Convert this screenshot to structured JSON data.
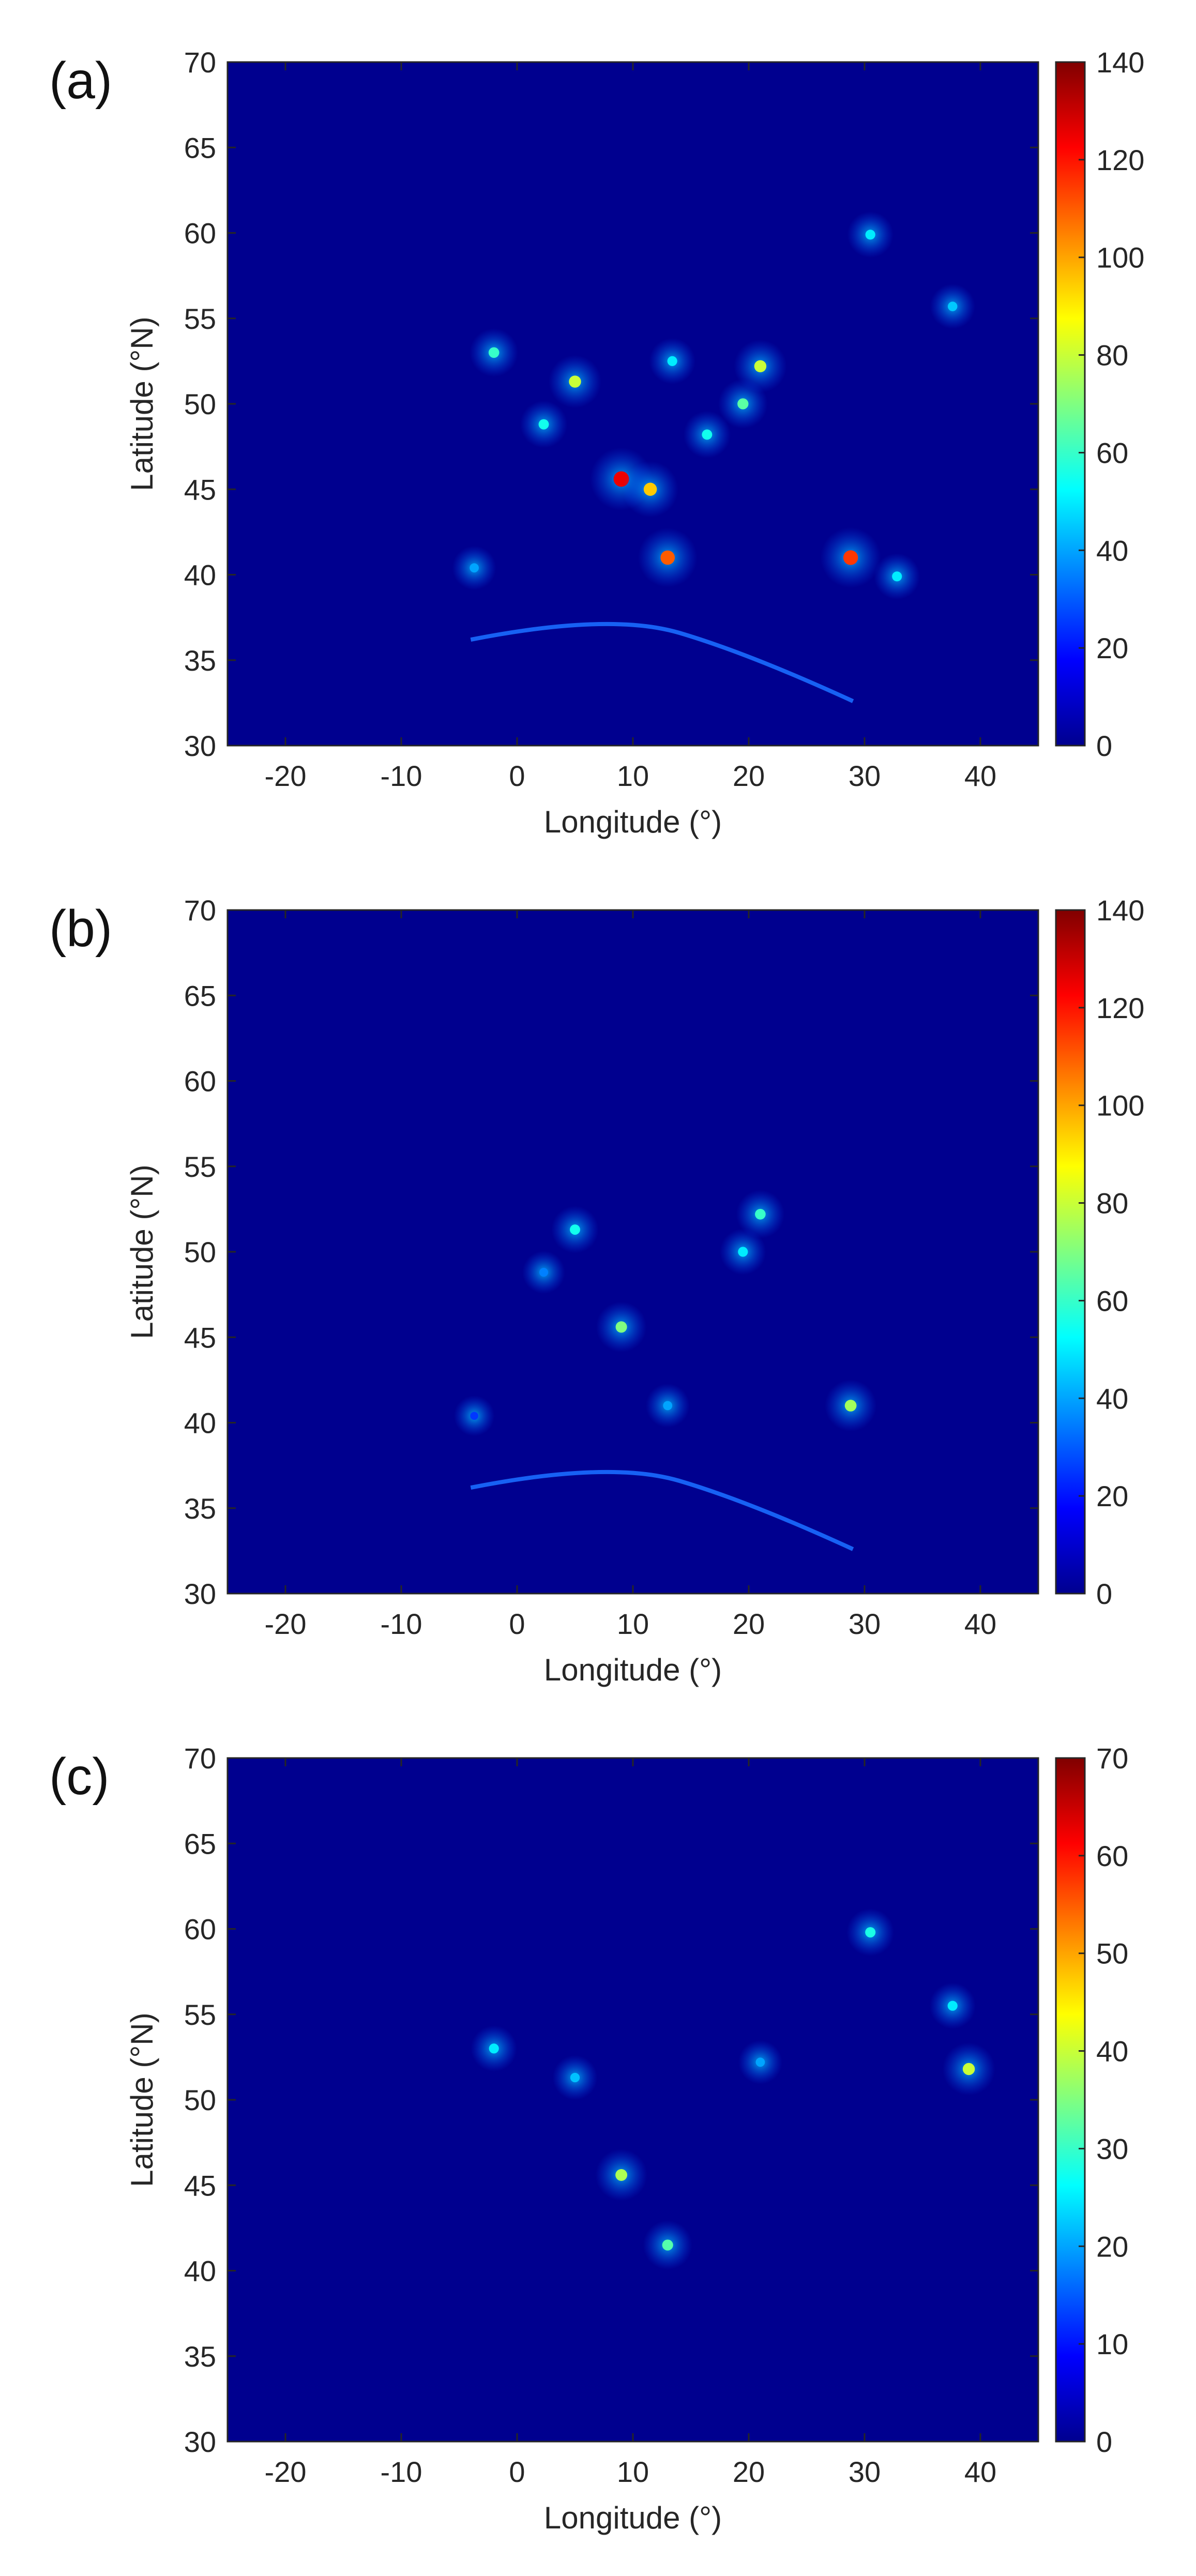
{
  "colors": {
    "background": "#00008f",
    "colormap": [
      "#00008f",
      "#0000ff",
      "#0080ff",
      "#00ffff",
      "#80ff80",
      "#ffff00",
      "#ff8000",
      "#ff0000",
      "#800000"
    ]
  },
  "chart_data": [
    {
      "panel_label": "(a)",
      "type": "heatmap",
      "xlabel": "Longitude (°)",
      "ylabel": "Latitude (°N)",
      "xlim": [
        -25,
        45
      ],
      "ylim": [
        30,
        70
      ],
      "xticks": [
        -20,
        -10,
        0,
        10,
        20,
        30,
        40
      ],
      "yticks": [
        30,
        35,
        40,
        45,
        50,
        55,
        60,
        65,
        70
      ],
      "colorbar": {
        "lim": [
          0,
          140
        ],
        "ticks": [
          0,
          20,
          40,
          60,
          80,
          100,
          120,
          140
        ]
      },
      "hotspots": [
        {
          "lon": 5,
          "lat": 51.3,
          "value": 80
        },
        {
          "lon": 9,
          "lat": 45.6,
          "value": 125
        },
        {
          "lon": 11.5,
          "lat": 45,
          "value": 95
        },
        {
          "lon": 13,
          "lat": 41,
          "value": 110
        },
        {
          "lon": 28.8,
          "lat": 41,
          "value": 115
        },
        {
          "lon": 21,
          "lat": 52.2,
          "value": 80
        },
        {
          "lon": 19.5,
          "lat": 50,
          "value": 65
        },
        {
          "lon": 2.3,
          "lat": 48.8,
          "value": 55
        },
        {
          "lon": -3.7,
          "lat": 40.4,
          "value": 40
        },
        {
          "lon": 30.5,
          "lat": 59.9,
          "value": 50
        },
        {
          "lon": 37.6,
          "lat": 55.7,
          "value": 45
        },
        {
          "lon": 13.4,
          "lat": 52.5,
          "value": 50
        },
        {
          "lon": 16.4,
          "lat": 48.2,
          "value": 55
        },
        {
          "lon": 32.8,
          "lat": 39.9,
          "value": 50
        },
        {
          "lon": -2,
          "lat": 53,
          "value": 60
        }
      ]
    },
    {
      "panel_label": "(b)",
      "type": "heatmap",
      "xlabel": "Longitude (°)",
      "ylabel": "Latitude (°N)",
      "xlim": [
        -25,
        45
      ],
      "ylim": [
        30,
        70
      ],
      "xticks": [
        -20,
        -10,
        0,
        10,
        20,
        30,
        40
      ],
      "yticks": [
        30,
        35,
        40,
        45,
        50,
        55,
        60,
        65,
        70
      ],
      "colorbar": {
        "lim": [
          0,
          140
        ],
        "ticks": [
          0,
          20,
          40,
          60,
          80,
          100,
          120,
          140
        ]
      },
      "hotspots": [
        {
          "lon": 5,
          "lat": 51.3,
          "value": 55
        },
        {
          "lon": 9,
          "lat": 45.6,
          "value": 70
        },
        {
          "lon": 28.8,
          "lat": 41,
          "value": 75
        },
        {
          "lon": 21,
          "lat": 52.2,
          "value": 60
        },
        {
          "lon": 19.5,
          "lat": 50,
          "value": 50
        },
        {
          "lon": 13,
          "lat": 41,
          "value": 40
        },
        {
          "lon": 2.3,
          "lat": 48.8,
          "value": 35
        },
        {
          "lon": -3.7,
          "lat": 40.4,
          "value": 25
        }
      ]
    },
    {
      "panel_label": "(c)",
      "type": "heatmap",
      "xlabel": "Longitude (°)",
      "ylabel": "Latitude (°N)",
      "xlim": [
        -25,
        45
      ],
      "ylim": [
        30,
        70
      ],
      "xticks": [
        -20,
        -10,
        0,
        10,
        20,
        30,
        40
      ],
      "yticks": [
        30,
        35,
        40,
        45,
        50,
        55,
        60,
        65,
        70
      ],
      "colorbar": {
        "lim": [
          0,
          70
        ],
        "ticks": [
          0,
          10,
          20,
          30,
          40,
          50,
          60,
          70
        ]
      },
      "hotspots": [
        {
          "lon": 9,
          "lat": 45.6,
          "value": 38
        },
        {
          "lon": 13,
          "lat": 41.5,
          "value": 32
        },
        {
          "lon": 39,
          "lat": 51.8,
          "value": 40
        },
        {
          "lon": 30.5,
          "lat": 59.8,
          "value": 28
        },
        {
          "lon": 37.6,
          "lat": 55.5,
          "value": 25
        },
        {
          "lon": 5,
          "lat": 51.3,
          "value": 22
        },
        {
          "lon": -2,
          "lat": 53,
          "value": 25
        },
        {
          "lon": 21,
          "lat": 52.2,
          "value": 20
        }
      ]
    }
  ]
}
